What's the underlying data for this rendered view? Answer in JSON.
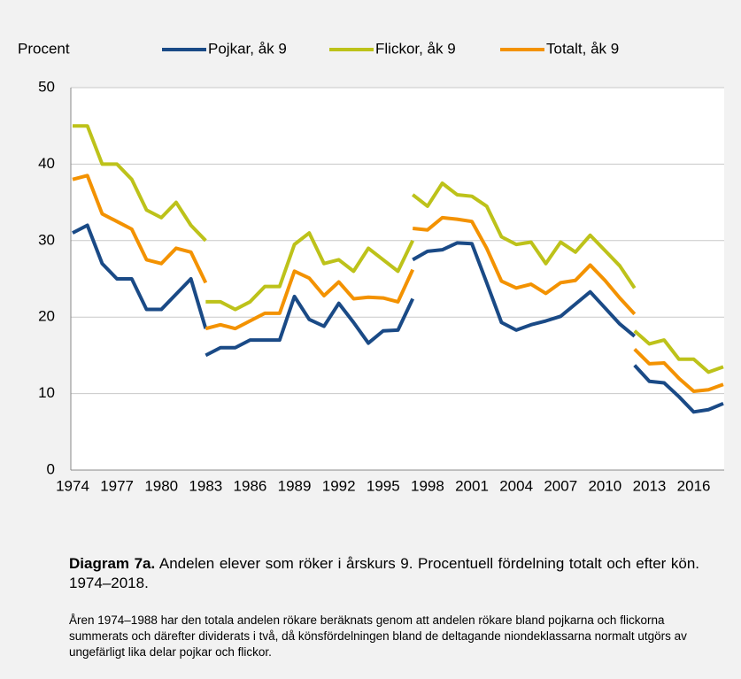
{
  "chart_data": {
    "type": "line",
    "y_label": "Procent",
    "categories": [
      1974,
      null,
      null,
      1977,
      null,
      null,
      1980,
      null,
      null,
      1983,
      null,
      null,
      1986,
      null,
      null,
      1989,
      null,
      null,
      1992,
      null,
      null,
      1995,
      null,
      null,
      1998,
      null,
      null,
      2001,
      null,
      null,
      2004,
      null,
      null,
      2007,
      null,
      null,
      2010,
      null,
      null,
      2013,
      null,
      null,
      2016,
      null,
      null
    ],
    "series": [
      {
        "name": "Pojkar, åk 9",
        "color": "#1a4a86",
        "values": [
          31,
          32,
          27,
          25,
          25,
          21,
          21,
          23,
          25,
          18.5,
          null,
          null,
          null,
          null,
          null,
          null,
          null,
          null,
          null,
          null,
          null,
          null,
          null,
          27.5,
          28.6,
          28.8,
          29.7,
          29.6,
          24.5,
          19.3,
          18.3,
          19,
          19.5,
          20.1,
          21.7,
          23.3,
          21.2,
          19.1,
          17.5,
          null,
          null,
          null,
          null,
          null,
          null
        ]
      },
      {
        "color": "#1a4a86",
        "values": [
          null,
          null,
          null,
          null,
          null,
          null,
          null,
          null,
          null,
          15,
          16,
          16,
          17,
          17,
          17,
          22.7,
          19.7,
          18.8,
          21.8,
          19.3,
          16.6,
          18.2,
          18.3,
          22.4,
          null,
          null,
          null,
          null,
          null,
          null,
          null,
          null,
          null,
          null,
          null,
          null,
          null,
          null,
          13.7,
          11.6,
          11.4,
          9.6,
          7.6,
          7.9,
          8.7
        ]
      },
      {
        "name": "Flickor, åk 9",
        "color": "#bdc21a",
        "values": [
          45,
          45,
          40,
          40,
          38,
          34,
          33,
          35,
          32,
          30,
          null,
          null,
          null,
          null,
          null,
          null,
          null,
          null,
          null,
          null,
          null,
          null,
          null,
          36,
          34.5,
          37.5,
          36,
          35.8,
          34.5,
          30.5,
          29.5,
          29.8,
          27,
          29.8,
          28.5,
          30.7,
          28.7,
          26.7,
          23.8,
          null,
          null,
          null,
          null,
          null,
          null
        ]
      },
      {
        "color": "#bdc21a",
        "values": [
          null,
          null,
          null,
          null,
          null,
          null,
          null,
          null,
          null,
          22,
          22,
          21,
          22,
          24,
          24,
          29.5,
          31,
          27,
          27.5,
          26,
          29,
          27.5,
          26,
          30,
          null,
          null,
          null,
          null,
          null,
          null,
          null,
          null,
          null,
          null,
          null,
          null,
          null,
          null,
          18.2,
          16.5,
          17,
          14.5,
          14.5,
          12.8,
          13.5
        ]
      },
      {
        "name": "Totalt, åk 9",
        "color": "#f39200",
        "values": [
          38,
          38.5,
          33.5,
          32.5,
          31.5,
          27.5,
          27,
          29,
          28.5,
          24.5,
          null,
          null,
          null,
          null,
          null,
          null,
          null,
          null,
          null,
          null,
          null,
          null,
          null,
          31.6,
          31.4,
          33,
          32.8,
          32.5,
          29,
          24.7,
          23.8,
          24.3,
          23.1,
          24.5,
          24.8,
          26.8,
          24.8,
          22.5,
          20.4,
          null,
          null,
          null,
          null,
          null,
          null
        ]
      },
      {
        "color": "#f39200",
        "values": [
          null,
          null,
          null,
          null,
          null,
          null,
          null,
          null,
          null,
          18.5,
          19,
          18.5,
          19.5,
          20.5,
          20.5,
          26,
          25.1,
          22.8,
          24.6,
          22.4,
          22.6,
          22.5,
          22,
          26.2,
          null,
          null,
          null,
          null,
          null,
          null,
          null,
          null,
          null,
          null,
          null,
          null,
          null,
          null,
          15.8,
          13.9,
          14,
          12,
          10.3,
          10.5,
          11.2
        ]
      }
    ],
    "ylim": [
      0,
      50
    ],
    "yticks": [
      0,
      10,
      20,
      30,
      40,
      50
    ],
    "grid": true
  },
  "caption": {
    "label": "Diagram 7a.",
    "text": "Andelen elever som röker i årskurs 9. Procentuell fördelning totalt och efter kön. 1974–2018."
  },
  "note": "Åren 1974–1988 har den totala andelen rökare beräknats genom att andelen rökare bland pojkarna och flickorna summerats och därefter dividerats i två, då könsfördelningen bland de deltagande niondeklassarna normalt utgörs av ungefärligt lika delar pojkar och flickor."
}
